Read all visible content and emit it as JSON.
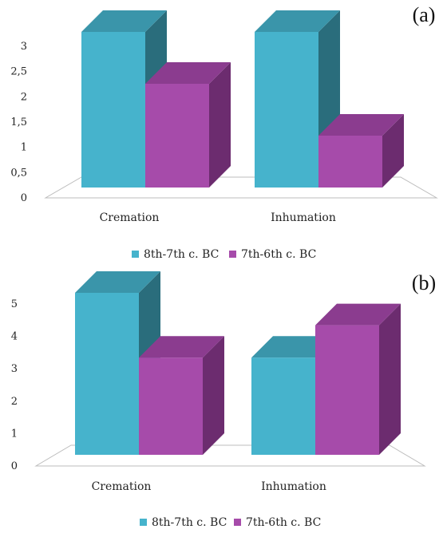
{
  "colors": {
    "series1_front": "#46B3CC",
    "series1_side": "#2A6D7C",
    "series1_top": "#3A95AA",
    "series2_front": "#A64BAA",
    "series2_side": "#6C2C6F",
    "series2_top": "#8B3C8F",
    "floor_stroke": "#bdbdbd",
    "text": "#222222"
  },
  "chart_data": [
    {
      "type": "bar",
      "panel_label": "(a)",
      "categories": [
        "Cremation",
        "Inhumation"
      ],
      "series": [
        {
          "name": "8th-7th c. BC",
          "values": [
            3,
            3
          ]
        },
        {
          "name": "7th-6th c. BC",
          "values": [
            2,
            1
          ]
        }
      ],
      "ylim": [
        0,
        3
      ],
      "yticks": [
        "0",
        "0,5",
        "1",
        "1,5",
        "2",
        "2,5",
        "3"
      ],
      "ytick_values": [
        0,
        0.5,
        1,
        1.5,
        2,
        2.5,
        3
      ],
      "legend_position": "bottom",
      "style": "3d-column",
      "grid": false
    },
    {
      "type": "bar",
      "panel_label": "(b)",
      "categories": [
        "Cremation",
        "Inhumation"
      ],
      "series": [
        {
          "name": "8th-7th c. BC",
          "values": [
            5,
            3
          ]
        },
        {
          "name": "7th-6th c. BC",
          "values": [
            3,
            4
          ]
        }
      ],
      "ylim": [
        0,
        5
      ],
      "yticks": [
        "0",
        "1",
        "2",
        "3",
        "4",
        "5"
      ],
      "ytick_values": [
        0,
        1,
        2,
        3,
        4,
        5
      ],
      "legend_position": "bottom",
      "style": "3d-column",
      "grid": false
    }
  ]
}
